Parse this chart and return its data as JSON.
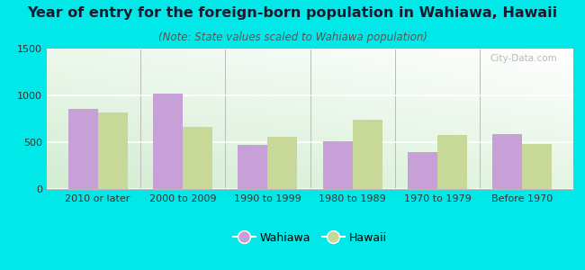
{
  "title": "Year of entry for the foreign-born population in Wahiawa, Hawaii",
  "subtitle": "(Note: State values scaled to Wahiawa population)",
  "categories": [
    "2010 or later",
    "2000 to 2009",
    "1990 to 1999",
    "1980 to 1989",
    "1970 to 1979",
    "Before 1970"
  ],
  "wahiawa_values": [
    860,
    1020,
    475,
    510,
    390,
    585
  ],
  "hawaii_values": [
    820,
    660,
    555,
    745,
    580,
    485
  ],
  "wahiawa_color": "#c8a0d8",
  "hawaii_color": "#c8d898",
  "background_color": "#00e8e8",
  "ylim": [
    0,
    1500
  ],
  "yticks": [
    0,
    500,
    1000,
    1500
  ],
  "bar_width": 0.35,
  "title_fontsize": 11.5,
  "subtitle_fontsize": 8.5,
  "tick_fontsize": 8,
  "legend_fontsize": 9
}
